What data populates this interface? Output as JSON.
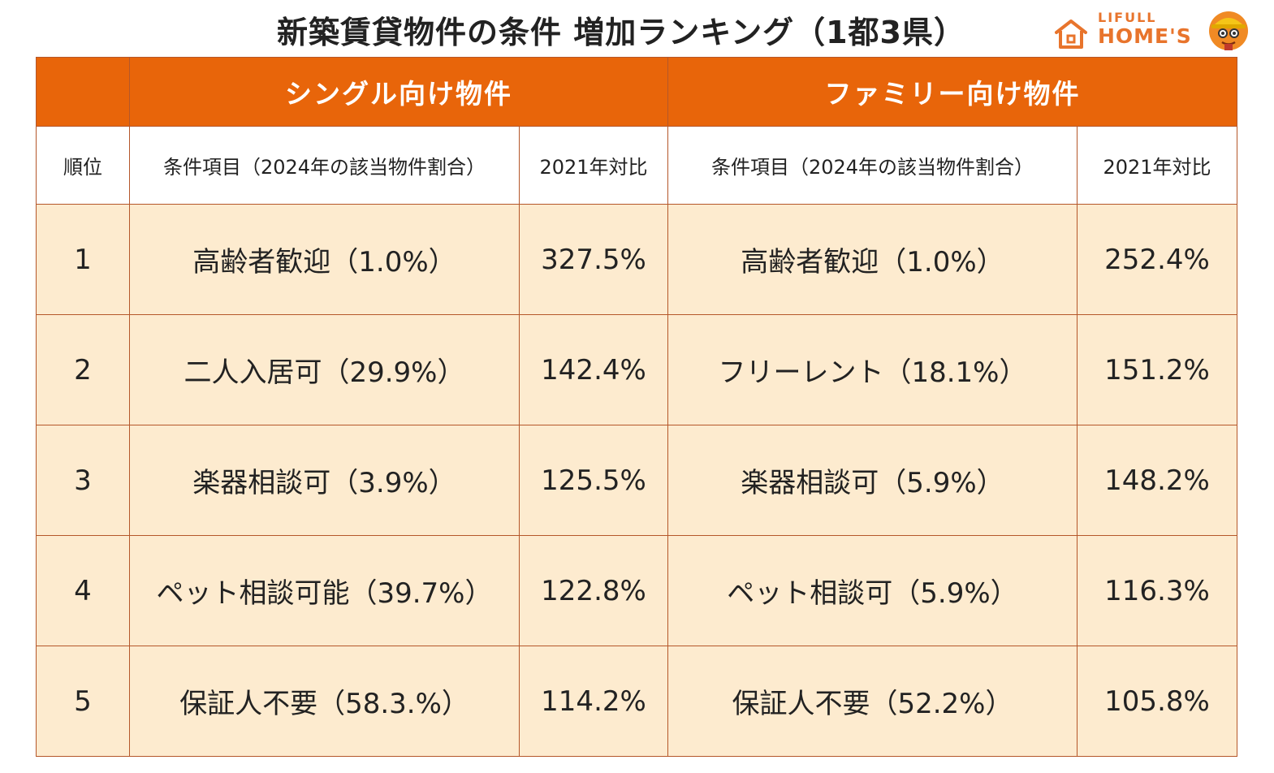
{
  "title": "新築賃貸物件の条件 増加ランキング（1都3県）",
  "brand": {
    "line1": "LIFULL",
    "line2": "HOME'S",
    "accent_color": "#e8742c"
  },
  "colors": {
    "header_orange": "#e8650a",
    "row_cream": "#fdebcf",
    "border": "#b5572a"
  },
  "chart_data": {
    "type": "table",
    "title": "新築賃貸物件の条件 増加ランキング（1都3県）",
    "groups": [
      "シングル向け物件",
      "ファミリー向け物件"
    ],
    "columns": [
      "順位",
      "条件項目（2024年の該当物件割合）",
      "2021年対比",
      "条件項目（2024年の該当物件割合）",
      "2021年対比"
    ],
    "rows": [
      {
        "rank": "1",
        "single_condition": "高齢者歓迎（1.0%）",
        "single_ratio": "327.5%",
        "family_condition": "高齢者歓迎（1.0%）",
        "family_ratio": "252.4%"
      },
      {
        "rank": "2",
        "single_condition": "二人入居可（29.9%）",
        "single_ratio": "142.4%",
        "family_condition": "フリーレント（18.1%）",
        "family_ratio": "151.2%"
      },
      {
        "rank": "3",
        "single_condition": "楽器相談可（3.9%）",
        "single_ratio": "125.5%",
        "family_condition": "楽器相談可（5.9%）",
        "family_ratio": "148.2%"
      },
      {
        "rank": "4",
        "single_condition": "ペット相談可能（39.7%）",
        "single_ratio": "122.8%",
        "family_condition": "ペット相談可（5.9%）",
        "family_ratio": "116.3%"
      },
      {
        "rank": "5",
        "single_condition": "保証人不要（58.3.%）",
        "single_ratio": "114.2%",
        "family_condition": "保証人不要（52.2%）",
        "family_ratio": "105.8%"
      }
    ]
  }
}
